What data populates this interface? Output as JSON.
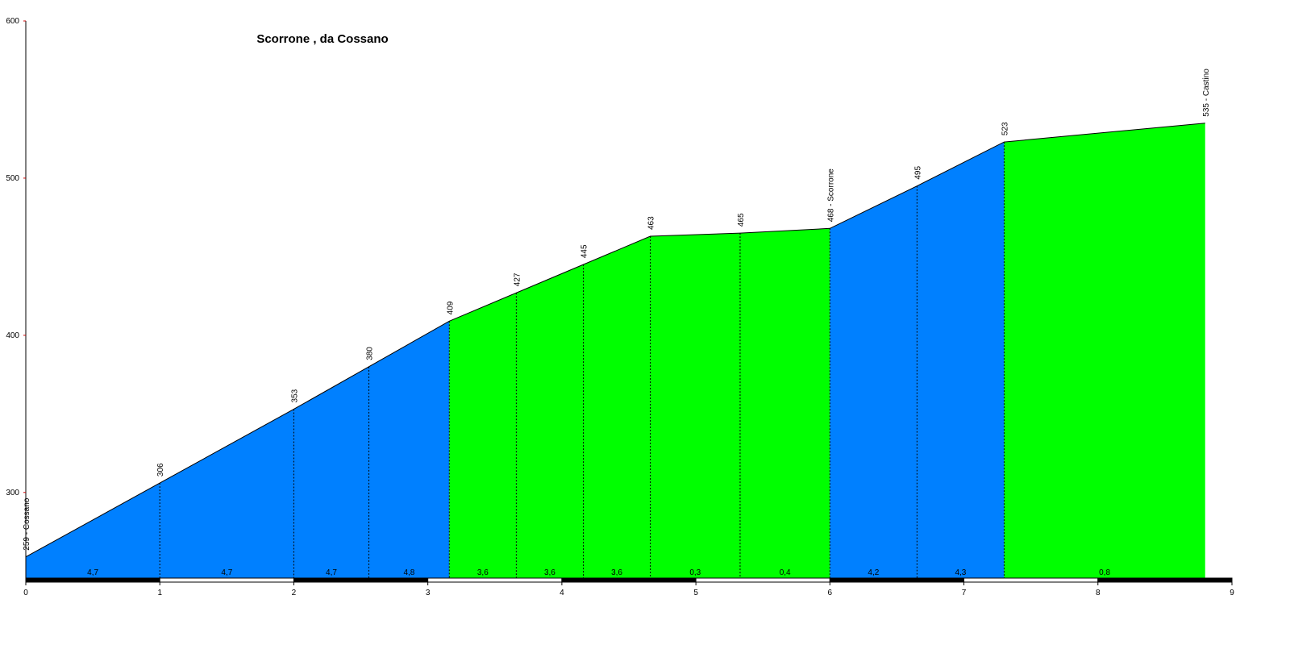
{
  "chart_data": {
    "type": "area",
    "title": "Scorrone , da Cossano",
    "x": [
      0,
      1,
      2,
      2.56,
      3.16,
      3.66,
      4.16,
      4.66,
      5.33,
      6,
      6.65,
      7.3,
      8.8
    ],
    "values": [
      259,
      306,
      353,
      380,
      409,
      427,
      445,
      463,
      465,
      468,
      495,
      523,
      535
    ],
    "value_labels": [
      "259 - Cossano",
      "306",
      "353",
      "380",
      "409",
      "427",
      "445",
      "463",
      "465",
      "468 - Scorrone",
      "495",
      "523",
      "535 - Castino"
    ],
    "slopes": [
      "4,7",
      "4,7",
      "4,7",
      "4,8",
      "3,6",
      "3,6",
      "3,6",
      "0,3",
      "0,4",
      "4,2",
      "4,3",
      "0,8"
    ],
    "segment_colors": [
      "#0080ff",
      "#0080ff",
      "#0080ff",
      "#0080ff",
      "#00ff00",
      "#00ff00",
      "#00ff00",
      "#00ff00",
      "#00ff00",
      "#0080ff",
      "#0080ff",
      "#00ff00"
    ],
    "xlim": [
      0,
      9
    ],
    "xticks": [
      0,
      1,
      2,
      3,
      4,
      5,
      6,
      7,
      8,
      9
    ],
    "ylim": [
      245,
      600
    ],
    "yticks": [
      300,
      400,
      500,
      600
    ]
  }
}
